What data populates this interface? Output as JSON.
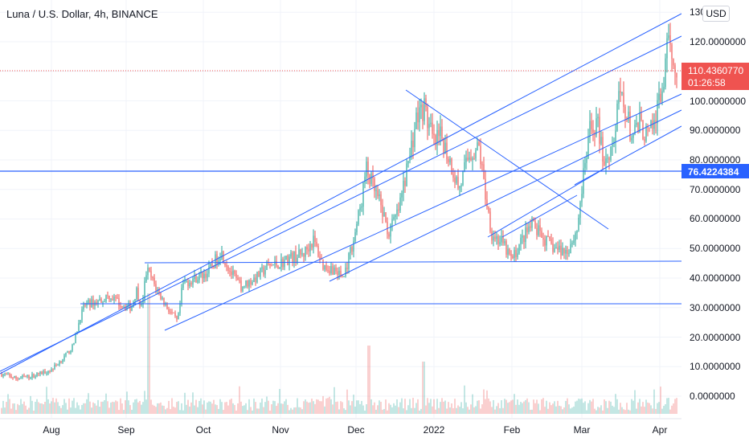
{
  "header": {
    "title": "Luna / U.S. Dollar, 4h, BINANCE",
    "currency": "USD"
  },
  "price_axis": {
    "ticks": [
      "130",
      "120.0000000",
      "110.4360770",
      "100.0000000",
      "90.0000000",
      "80.0000000",
      "76.4224384",
      "70.0000000",
      "60.0000000",
      "50.0000000",
      "40.0000000",
      "30.0000000",
      "20.0000000",
      "10.0000000",
      "0.0000000"
    ]
  },
  "time_axis": {
    "labels": [
      "Aug",
      "Sep",
      "Oct",
      "Nov",
      "Dec",
      "2022",
      "Feb",
      "Mar",
      "Apr"
    ]
  },
  "last_price": {
    "value": "110.4360770",
    "countdown": "01:26:58",
    "color": "#ef5350"
  },
  "horizontal_level": {
    "value": "76.4224384",
    "color": "#2962ff"
  },
  "colors": {
    "up": "#26a69a",
    "down": "#ef5350",
    "lines": "#2962ff"
  },
  "chart_data": {
    "type": "candlestick",
    "x_labels": [
      "Aug",
      "Sep",
      "Oct",
      "Nov",
      "Dec",
      "2022",
      "Feb",
      "Mar",
      "Apr"
    ],
    "ylim": [
      -5,
      130
    ],
    "y_ticks": [
      0,
      10,
      20,
      30,
      40,
      50,
      60,
      70,
      80,
      90,
      100,
      110,
      120,
      130
    ],
    "close_path": [
      [
        "Jul 12",
        7.5
      ],
      [
        "Jul 18",
        6
      ],
      [
        "Jul 25",
        7
      ],
      [
        "Aug 1",
        9
      ],
      [
        "Aug 6",
        13
      ],
      [
        "Aug 10",
        17
      ],
      [
        "Aug 13",
        27
      ],
      [
        "Aug 15",
        31
      ],
      [
        "Aug 20",
        32
      ],
      [
        "Aug 25",
        34
      ],
      [
        "Aug 30",
        31
      ],
      [
        "Sep 3",
        30
      ],
      [
        "Sep 5",
        36
      ],
      [
        "Sep 7",
        30
      ],
      [
        "Sep 9",
        43
      ],
      [
        "Sep 13",
        36
      ],
      [
        "Sep 17",
        30
      ],
      [
        "Sep 21",
        25
      ],
      [
        "Sep 23",
        38
      ],
      [
        "Sep 28",
        40
      ],
      [
        "Oct 3",
        42
      ],
      [
        "Oct 8",
        49
      ],
      [
        "Oct 12",
        42
      ],
      [
        "Oct 16",
        37
      ],
      [
        "Oct 22",
        40
      ],
      [
        "Oct 27",
        44
      ],
      [
        "Nov 1",
        45
      ],
      [
        "Nov 5",
        47
      ],
      [
        "Nov 10",
        48
      ],
      [
        "Nov 14",
        53
      ],
      [
        "Nov 18",
        44
      ],
      [
        "Nov 22",
        43
      ],
      [
        "Nov 26",
        40
      ],
      [
        "Nov 30",
        53
      ],
      [
        "Dec 3",
        65
      ],
      [
        "Dec 5",
        77
      ],
      [
        "Dec 9",
        68
      ],
      [
        "Dec 11",
        64
      ],
      [
        "Dec 14",
        55
      ],
      [
        "Dec 18",
        63
      ],
      [
        "Dec 22",
        80
      ],
      [
        "Dec 25",
        94
      ],
      [
        "Dec 28",
        98
      ],
      [
        "Jan 1",
        85
      ],
      [
        "Jan 4",
        88
      ],
      [
        "Jan 8",
        78
      ],
      [
        "Jan 11",
        70
      ],
      [
        "Jan 15",
        82
      ],
      [
        "Jan 19",
        84
      ],
      [
        "Jan 21",
        71
      ],
      [
        "Jan 24",
        55
      ],
      [
        "Jan 28",
        52
      ],
      [
        "Feb 1",
        46
      ],
      [
        "Feb 5",
        53
      ],
      [
        "Feb 9",
        58
      ],
      [
        "Feb 14",
        53
      ],
      [
        "Feb 18",
        50
      ],
      [
        "Feb 23",
        49
      ],
      [
        "Feb 27",
        56
      ],
      [
        "Mar 1",
        70
      ],
      [
        "Mar 4",
        89
      ],
      [
        "Mar 7",
        93
      ],
      [
        "Mar 10",
        79
      ],
      [
        "Mar 14",
        88
      ],
      [
        "Mar 16",
        102
      ],
      [
        "Mar 18",
        98
      ],
      [
        "Mar 21",
        87
      ],
      [
        "Mar 24",
        92
      ],
      [
        "Mar 27",
        88
      ],
      [
        "Mar 29",
        90
      ],
      [
        "Apr 2",
        104
      ],
      [
        "Apr 4",
        117
      ],
      [
        "Apr 6",
        117
      ],
      [
        "Apr 8",
        110
      ]
    ],
    "volume_spikes": [
      "Sep 10",
      "Dec 6",
      "Dec 28"
    ],
    "drawn_lines": {
      "horizontal_levels": [
        31,
        46,
        76.42
      ],
      "ascending_channel": "upward parallel channel lines from Jul to Apr",
      "descending_line": "diagonal from late Dec high toward late Feb"
    }
  }
}
